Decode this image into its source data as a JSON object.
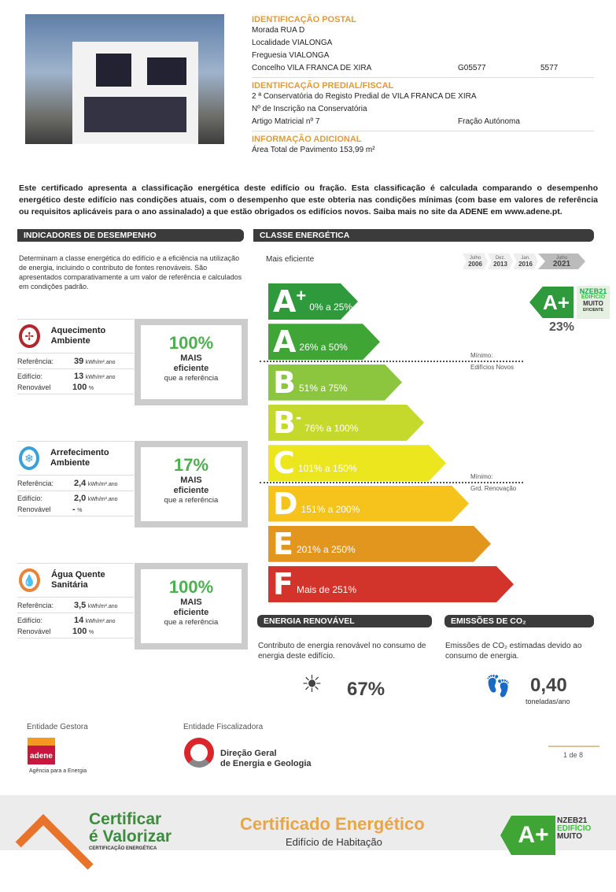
{
  "postal": {
    "heading": "IDENTIFICAÇÃO POSTAL",
    "morada": "Morada RUA D",
    "localidade": "Localidade VIALONGA",
    "freguesia": "Freguesia VIALONGA",
    "concelho": "Concelho VILA FRANCA DE XIRA",
    "code1": "G05577",
    "code2": "5577"
  },
  "predial": {
    "heading": "IDENTIFICAÇÃO PREDIAL/FISCAL",
    "conservatoria": "2 ª Conservatória do Registo Predial de VILA FRANCA DE XIRA",
    "inscricao": "Nº de Inscrição na Conservatória",
    "artigo": "Artigo Matricial nº 7",
    "fracao": "Fração Autónoma"
  },
  "adicional": {
    "heading": "INFORMAÇÃO ADICIONAL",
    "area": "Área Total de Pavimento 153,99 m²"
  },
  "intro": "Este certificado apresenta a classificação energética deste edifício ou fração. Esta classificação é calculada comparando o desempenho energético deste edifício nas condições atuais, com o desempenho que este obteria nas condições mínimas (com base em valores de referência ou requisitos aplicáveis para o ano assinalado) a que estão obrigados os edifícios novos. Saiba mais no site da ADENE em www.adene.pt.",
  "indicadores": {
    "heading": "INDICADORES DE DESEMPENHO",
    "description": "Determinam a classe energética do edifício e a eficiência na utilização de energia, incluindo o contributo de fontes renováveis. São apresentados comparativamente a um valor de referência e calculados em condições padrão.",
    "labels": {
      "ref": "Referência:",
      "edif": "Edifício:",
      "renov": "Renovável",
      "unit": "kWh/m².ano",
      "pct": "%",
      "mais": "MAIS",
      "eficiente": "eficiente",
      "que": "que a referência"
    },
    "items": [
      {
        "title": "Aquecimento Ambiente",
        "icon": "fan-icon",
        "color": "#b0272d",
        "ref": "39",
        "edif": "13",
        "renov": "100",
        "efficiency": "100%"
      },
      {
        "title": "Arrefecimento Ambiente",
        "icon": "snowflake-fan-icon",
        "color": "#3aa0d8",
        "ref": "2,4",
        "edif": "2,0",
        "renov": "-",
        "efficiency": "17%"
      },
      {
        "title": "Água Quente Sanitária",
        "icon": "water-drop-icon",
        "color": "#e8843a",
        "ref": "3,5",
        "edif": "14",
        "renov": "100",
        "efficiency": "100%"
      }
    ]
  },
  "classe": {
    "heading": "CLASSE ENERGÉTICA",
    "mais_eficiente": "Mais eficiente",
    "timeline": [
      {
        "m": "Julho",
        "y": "2006"
      },
      {
        "m": "Dez.",
        "y": "2013"
      },
      {
        "m": "Jan.",
        "y": "2016"
      },
      {
        "m": "Julho",
        "y": "2021",
        "active": true
      }
    ],
    "classes": [
      {
        "letter": "A",
        "sup": "+",
        "range": "0% a 25%",
        "color": "#2e9a3b"
      },
      {
        "letter": "A",
        "sup": "",
        "range": "26% a 50%",
        "color": "#3fa535"
      },
      {
        "letter": "B",
        "sup": "",
        "range": "51% a 75%",
        "color": "#8cc63f"
      },
      {
        "letter": "B",
        "sup": "-",
        "range": "76% a 100%",
        "color": "#c5d82c"
      },
      {
        "letter": "C",
        "sup": "",
        "range": "101% a 150%",
        "color": "#ece61f"
      },
      {
        "letter": "D",
        "sup": "",
        "range": "151% a 200%",
        "color": "#f5c31c"
      },
      {
        "letter": "E",
        "sup": "",
        "range": "201% a 250%",
        "color": "#e2961d"
      },
      {
        "letter": "F",
        "sup": "",
        "range": "Mais de 251%",
        "color": "#d2332a"
      }
    ],
    "result": {
      "letter": "A+",
      "value": "23%",
      "nzeb": [
        "NZEB21",
        "EDIFÍCIO",
        "MUITO",
        "EFICIENTE"
      ]
    },
    "min1": {
      "label": "Mínimo:",
      "sub": "Edifícios Novos"
    },
    "min2": {
      "label": "Mínimo:",
      "sub": "Grd. Renovação"
    }
  },
  "renovavel": {
    "heading": "ENERGIA RENOVÁVEL",
    "text": "Contributo de energia renovável no consumo de energia deste edifício.",
    "value": "67%"
  },
  "co2": {
    "heading": "EMISSÕES DE CO₂",
    "text": "Emissões de CO₂ estimadas devido ao consumo de energia.",
    "value": "0,40",
    "unit": "toneladas/ano"
  },
  "entidades": {
    "gestora": "Entidade Gestora",
    "adene": "adene",
    "adene_sub": "Agência para a Energia",
    "fiscalizadora": "Entidade Fiscalizadora",
    "dgeg1": "Direção Geral",
    "dgeg2": "de Energia e Geologia",
    "page": "1 de 8"
  },
  "footer": {
    "logo1": "Certificar",
    "logo2": "é Valorizar",
    "logo3": "CERTIFICAÇÃO ENERGÉTICA",
    "title": "Certificado Energético",
    "subtitle": "Edifício de Habitação",
    "badge": "A+",
    "nzeb": [
      "NZEB21",
      "EDIFÍCIO",
      "MUITO"
    ]
  }
}
